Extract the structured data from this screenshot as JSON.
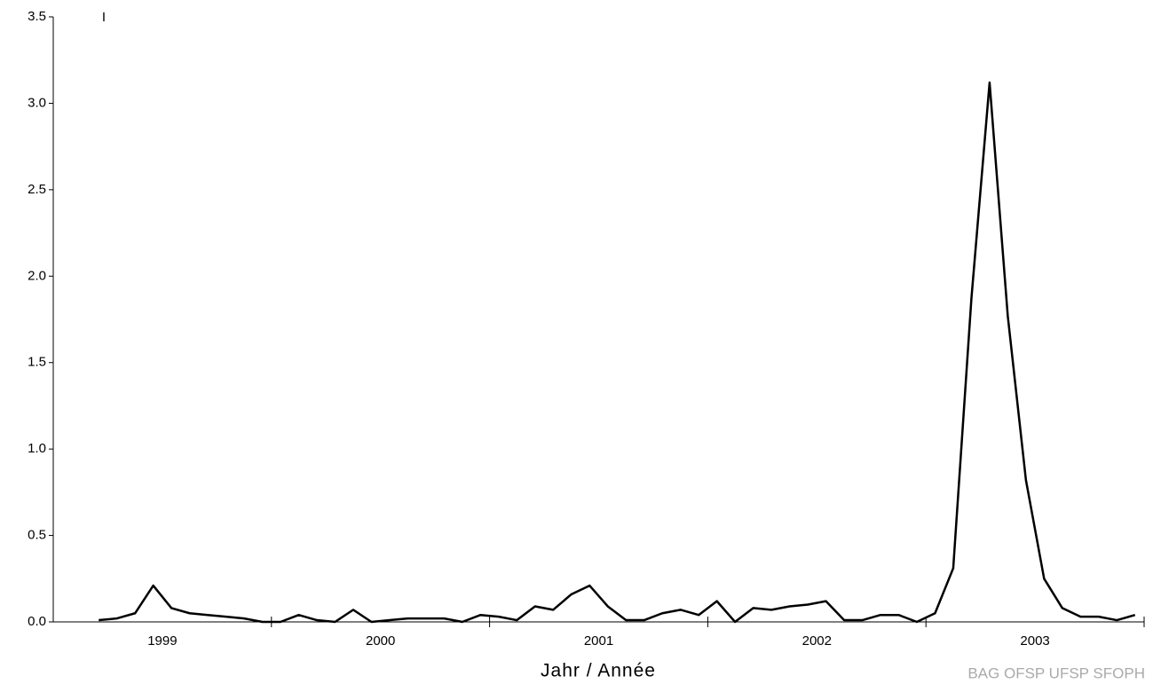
{
  "chart_data": {
    "type": "line",
    "annotation": "I",
    "x_label": "Jahr / Année",
    "watermark": "BAG OFSP UFSP SFOPH",
    "year_labels": [
      "1999",
      "2000",
      "2001",
      "2002",
      "2003"
    ],
    "categories": [
      null,
      null,
      null,
      null,
      null,
      null,
      null,
      null,
      null,
      null,
      null,
      null,
      null,
      null,
      null,
      null,
      null,
      null,
      null,
      null,
      null,
      null,
      null,
      null,
      null,
      null,
      null,
      null,
      null,
      null,
      null,
      null,
      null,
      null,
      null,
      null,
      null,
      null,
      null,
      null,
      null,
      null,
      null,
      null,
      null,
      null,
      null,
      null,
      null,
      null,
      null,
      null,
      null,
      null,
      null,
      null,
      null,
      null,
      null,
      null
    ],
    "series": [
      {
        "name": null,
        "color": "#000000",
        "values": [
          null,
          null,
          0.01,
          0.02,
          0.05,
          0.21,
          0.08,
          0.05,
          0.04,
          0.03,
          0.02,
          0.0,
          0.0,
          0.04,
          0.01,
          0.0,
          0.07,
          0.0,
          0.01,
          0.02,
          0.02,
          0.02,
          0.0,
          0.04,
          0.03,
          0.01,
          0.09,
          0.07,
          0.16,
          0.21,
          0.09,
          0.01,
          0.01,
          0.05,
          0.07,
          0.04,
          0.12,
          0.0,
          0.08,
          0.07,
          0.09,
          0.1,
          0.12,
          0.01,
          0.01,
          0.04,
          0.04,
          0.0,
          0.05,
          0.31,
          1.87,
          3.12,
          1.77,
          0.82,
          0.25,
          0.08,
          0.03,
          0.03,
          0.01,
          0.04
        ]
      }
    ],
    "ylim": [
      0,
      3.5
    ],
    "yticks": [
      {
        "value": 0,
        "label": "0.0"
      },
      0.5,
      {
        "value": 1,
        "label": "1.0"
      },
      1.5,
      {
        "value": 2,
        "label": "2.0"
      },
      2.5,
      {
        "value": 3,
        "label": "3.0"
      },
      3.5
    ],
    "grid": false
  }
}
